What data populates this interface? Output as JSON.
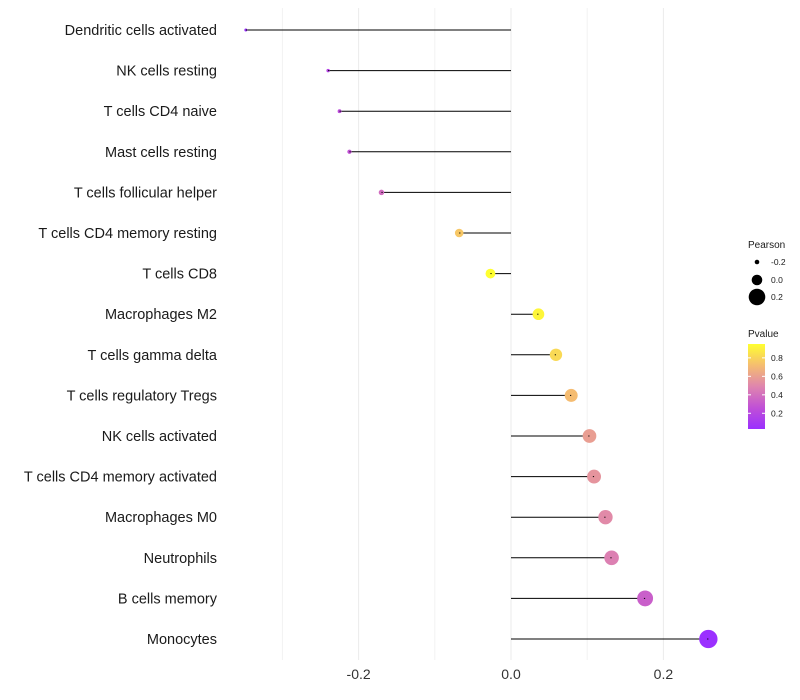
{
  "chart_data": {
    "type": "lollipop",
    "title": "",
    "xlabel": "",
    "ylabel": "",
    "xlim": [
      -0.36,
      0.28
    ],
    "x_ticks": [
      -0.2,
      0.0,
      0.2
    ],
    "x_tick_labels": [
      "-0.2",
      "0.0",
      "0.2"
    ],
    "grid": true,
    "legend_position": "right",
    "categories": [
      "Dendritic cells activated",
      "NK cells resting",
      "T cells CD4 naive",
      "Mast cells resting",
      "T cells follicular helper",
      "T cells CD4 memory resting",
      "T cells CD8",
      "Macrophages M2",
      "T cells gamma delta",
      "T cells regulatory  Tregs ",
      "NK cells activated",
      "T cells CD4 memory activated",
      "Macrophages M0",
      "Neutrophils",
      "B cells memory",
      "Monocytes"
    ],
    "pearson": [
      -0.348,
      -0.24,
      -0.225,
      -0.212,
      -0.17,
      -0.068,
      -0.027,
      0.036,
      0.059,
      0.079,
      0.103,
      0.109,
      0.124,
      0.132,
      0.176,
      0.259
    ],
    "pvalue": [
      0.03,
      0.2,
      0.25,
      0.28,
      0.4,
      0.76,
      0.95,
      0.92,
      0.82,
      0.72,
      0.6,
      0.56,
      0.52,
      0.48,
      0.34,
      0.05
    ],
    "size_legend": {
      "title": "Pearson",
      "values": [
        -0.2,
        0.0,
        0.2
      ],
      "labels": [
        "-0.2",
        "0.0",
        "0.2"
      ]
    },
    "color_legend": {
      "title": "Pvalue",
      "ticks": [
        0.8,
        0.6,
        0.4,
        0.2
      ],
      "labels": [
        "0.8",
        "0.6",
        "0.4",
        "0.2"
      ],
      "low_color": "#9b30ff",
      "high_color": "#ffff30"
    }
  }
}
